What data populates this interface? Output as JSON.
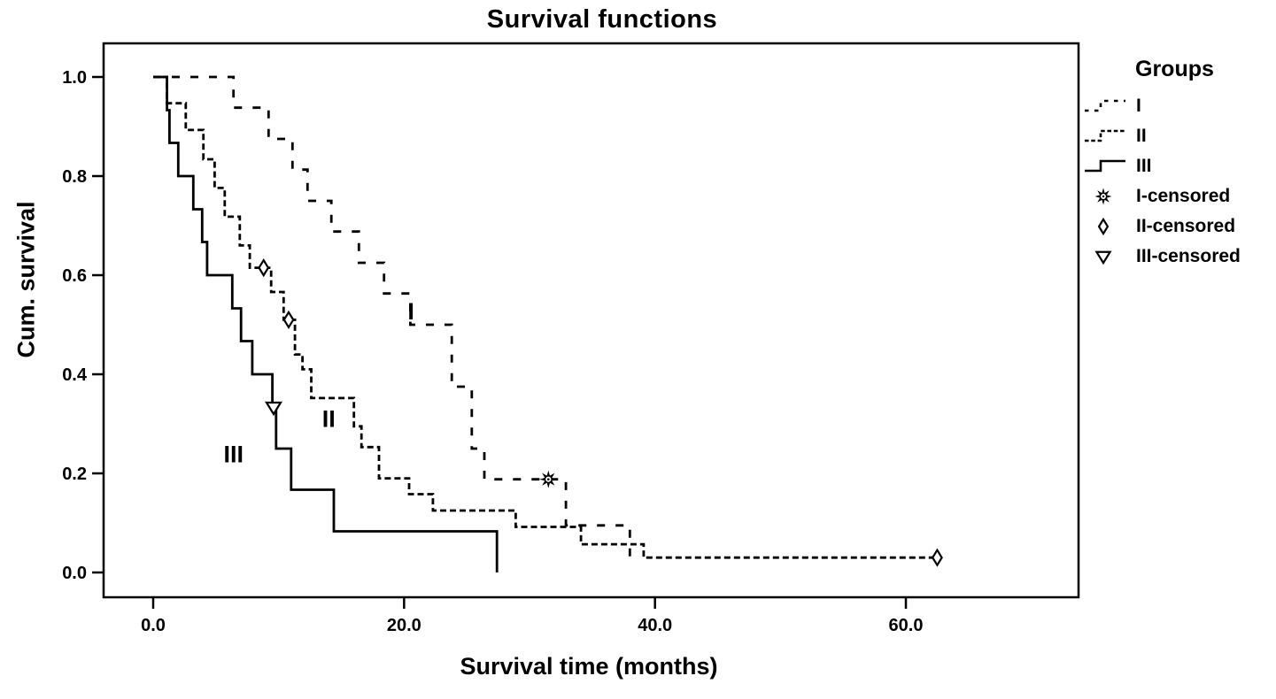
{
  "chart_data": {
    "type": "line",
    "subtype": "kaplan-meier-step",
    "title": "Survival functions",
    "xlabel": "Survival time (months)",
    "ylabel": "Cum. survival",
    "xlim": [
      -4,
      74
    ],
    "ylim": [
      -0.055,
      1.068
    ],
    "grid": "off",
    "legend_position": "right",
    "line_color": "#000000",
    "background": "#ffffff",
    "x_ticks": [
      {
        "value": 0,
        "label": "0.0"
      },
      {
        "value": 20,
        "label": "20.0"
      },
      {
        "value": 40,
        "label": "40.0"
      },
      {
        "value": 60,
        "label": "60.0"
      }
    ],
    "y_ticks": [
      {
        "value": 0.0,
        "label": "0.0"
      },
      {
        "value": 0.2,
        "label": "0.2"
      },
      {
        "value": 0.4,
        "label": "0.4"
      },
      {
        "value": 0.6,
        "label": "0.6"
      },
      {
        "value": 0.8,
        "label": "0.8"
      },
      {
        "value": 1.0,
        "label": "1.0"
      }
    ],
    "series": [
      {
        "name": "I",
        "style": "dash-sparse",
        "start": [
          0,
          1.0
        ],
        "steps": [
          [
            6.4,
            0.938
          ],
          [
            9.2,
            0.875
          ],
          [
            11.1,
            0.813
          ],
          [
            12.3,
            0.75
          ],
          [
            14.2,
            0.688
          ],
          [
            16.4,
            0.625
          ],
          [
            18.4,
            0.563
          ],
          [
            20.5,
            0.5
          ],
          [
            23.8,
            0.375
          ],
          [
            25.4,
            0.25
          ],
          [
            26.4,
            0.188
          ],
          [
            32.9,
            0.095
          ],
          [
            38,
            0.02
          ]
        ],
        "end_time": 38
      },
      {
        "name": "II",
        "style": "dash-dense",
        "start": [
          0,
          1.0
        ],
        "steps": [
          [
            1.1,
            0.947
          ],
          [
            2.6,
            0.893
          ],
          [
            4.0,
            0.834
          ],
          [
            4.9,
            0.776
          ],
          [
            5.7,
            0.718
          ],
          [
            6.9,
            0.66
          ],
          [
            7.7,
            0.615
          ],
          [
            9.4,
            0.566
          ],
          [
            10.4,
            0.51
          ],
          [
            11.3,
            0.44
          ],
          [
            11.9,
            0.41
          ],
          [
            12.6,
            0.352
          ],
          [
            16.0,
            0.295
          ],
          [
            16.6,
            0.253
          ],
          [
            18.0,
            0.19
          ],
          [
            20.4,
            0.158
          ],
          [
            22.3,
            0.125
          ],
          [
            28.9,
            0.092
          ],
          [
            34.1,
            0.057
          ],
          [
            39.1,
            0.03
          ]
        ],
        "end_time": 62.5
      },
      {
        "name": "III",
        "style": "solid",
        "start": [
          0,
          1.0
        ],
        "steps": [
          [
            1.1,
            0.933
          ],
          [
            1.3,
            0.867
          ],
          [
            2.0,
            0.8
          ],
          [
            3.2,
            0.733
          ],
          [
            3.9,
            0.667
          ],
          [
            4.3,
            0.6
          ],
          [
            6.3,
            0.533
          ],
          [
            7.0,
            0.467
          ],
          [
            7.9,
            0.4
          ],
          [
            9.5,
            0.333
          ],
          [
            9.8,
            0.25
          ],
          [
            11.0,
            0.167
          ],
          [
            14.4,
            0.083
          ],
          [
            27.4,
            0.0
          ]
        ],
        "end_time": 27.4
      }
    ],
    "censored_markers": [
      {
        "group": "I",
        "marker": "star8",
        "t": 31.5,
        "v": 0.188
      },
      {
        "group": "II",
        "marker": "diamond",
        "t": 8.8,
        "v": 0.615
      },
      {
        "group": "II",
        "marker": "diamond",
        "t": 10.8,
        "v": 0.51
      },
      {
        "group": "II",
        "marker": "diamond",
        "t": 62.5,
        "v": 0.03
      },
      {
        "group": "III",
        "marker": "triangle-down",
        "t": 9.6,
        "v": 0.333
      }
    ],
    "annotations": [
      {
        "text": "I",
        "t": 20.55,
        "v": 0.527
      },
      {
        "text": "II",
        "t": 14.0,
        "v": 0.31
      },
      {
        "text": "III",
        "t": 6.4,
        "v": 0.238
      }
    ]
  },
  "legend": {
    "title": "Groups",
    "items": [
      {
        "label": "I",
        "type": "line",
        "style": "dash-sparse"
      },
      {
        "label": "II",
        "type": "line",
        "style": "dash-dense"
      },
      {
        "label": "III",
        "type": "line",
        "style": "solid"
      },
      {
        "label": "I-censored",
        "type": "marker",
        "marker": "star8"
      },
      {
        "label": "II-censored",
        "type": "marker",
        "marker": "diamond"
      },
      {
        "label": "III-censored",
        "type": "marker",
        "marker": "triangle-down"
      }
    ]
  }
}
